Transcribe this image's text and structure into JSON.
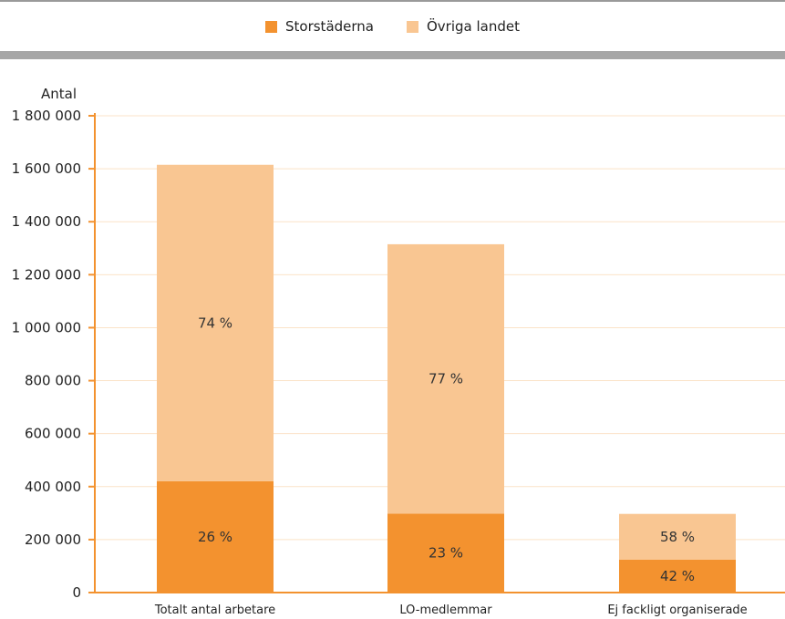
{
  "legend": {
    "items": [
      {
        "label": "Storstäderna",
        "color": "#f3922f"
      },
      {
        "label": "Övriga landet",
        "color": "#f9c692"
      }
    ]
  },
  "chart_data": {
    "type": "bar",
    "stacked": true,
    "ylabel": "Antal",
    "ylim": [
      0,
      1800000
    ],
    "yticks": [
      {
        "value": 0,
        "label": "0"
      },
      {
        "value": 200000,
        "label": "200 000"
      },
      {
        "value": 400000,
        "label": "400 000"
      },
      {
        "value": 600000,
        "label": "600 000"
      },
      {
        "value": 800000,
        "label": "800 000"
      },
      {
        "value": 1000000,
        "label": "1 000 000"
      },
      {
        "value": 1200000,
        "label": "1 200 000"
      },
      {
        "value": 1400000,
        "label": "1 400 000"
      },
      {
        "value": 1600000,
        "label": "1 600 000"
      },
      {
        "value": 1800000,
        "label": "1 800 000"
      }
    ],
    "categories": [
      "Totalt antal arbetare",
      "LO-medlemmar",
      "Ej fackligt organiserade"
    ],
    "series": [
      {
        "name": "Storstäderna",
        "color": "#f3922f",
        "values": [
          420000,
          298000,
          124000
        ],
        "labels": [
          "26 %",
          "23 %",
          "42 %"
        ]
      },
      {
        "name": "Övriga landet",
        "color": "#f9c692",
        "values": [
          1195000,
          1017000,
          173000
        ],
        "labels": [
          "74 %",
          "77 %",
          "58 %"
        ]
      }
    ],
    "grid": true,
    "legend_position": "top-center"
  }
}
